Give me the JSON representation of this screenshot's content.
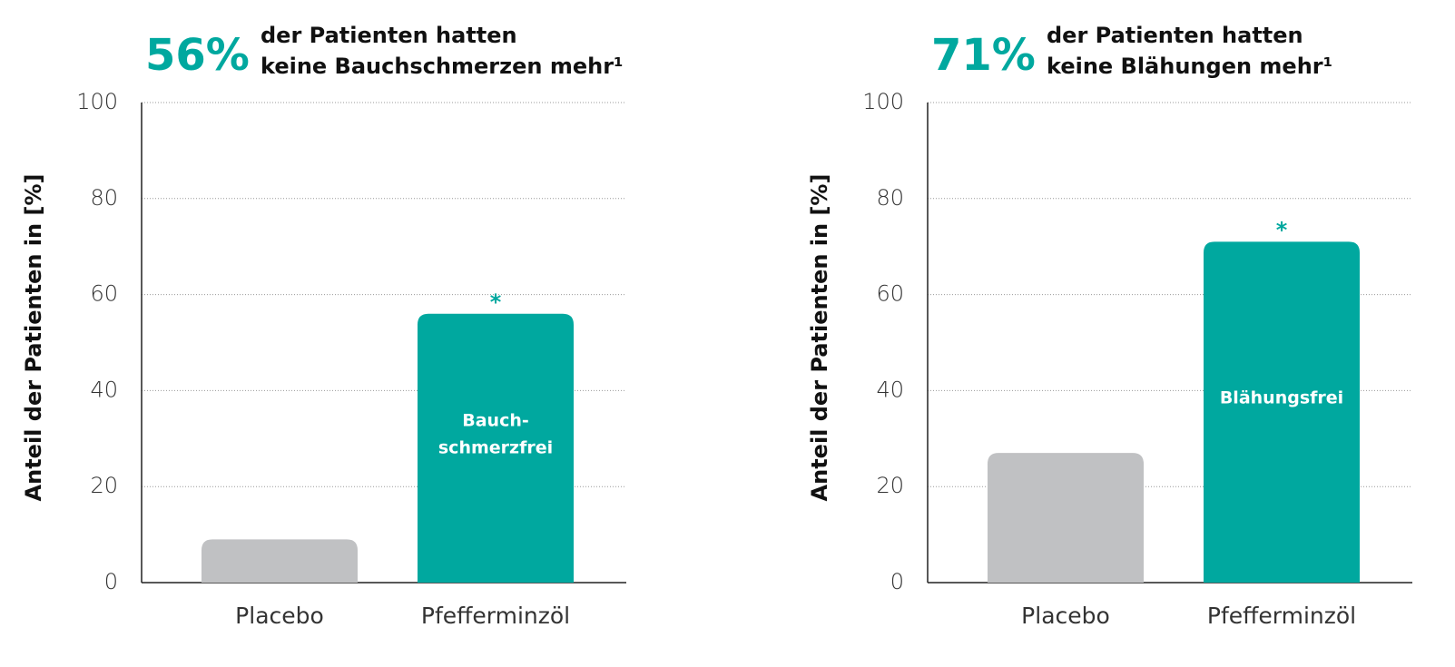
{
  "chart_data": [
    {
      "type": "bar",
      "headline": "56%",
      "title": [
        "der Patienten hatten",
        "keine Bauchschmerzen mehr¹"
      ],
      "y_label": "Anteil der Patienten in [%]",
      "categories": [
        "Placebo",
        "Pfefferminzöl"
      ],
      "values": [
        9,
        56
      ],
      "colors": [
        "#c0c1c3",
        "#00a89f"
      ],
      "bar_label": [
        "Bauch-",
        "schmerzfrei"
      ],
      "significance": "*",
      "ylim": [
        0,
        100
      ],
      "yticks": [
        0,
        20,
        40,
        60,
        80,
        100
      ],
      "grid": true
    },
    {
      "type": "bar",
      "headline": "71%",
      "title": [
        "der Patienten hatten",
        "keine Blähungen mehr¹"
      ],
      "y_label": "Anteil der Patienten in [%]",
      "categories": [
        "Placebo",
        "Pfefferminzöl"
      ],
      "values": [
        27,
        71
      ],
      "colors": [
        "#c0c1c3",
        "#00a89f"
      ],
      "bar_label": [
        "Blähungsfrei"
      ],
      "significance": "*",
      "ylim": [
        0,
        100
      ],
      "yticks": [
        0,
        20,
        40,
        60,
        80,
        100
      ],
      "grid": true
    }
  ]
}
